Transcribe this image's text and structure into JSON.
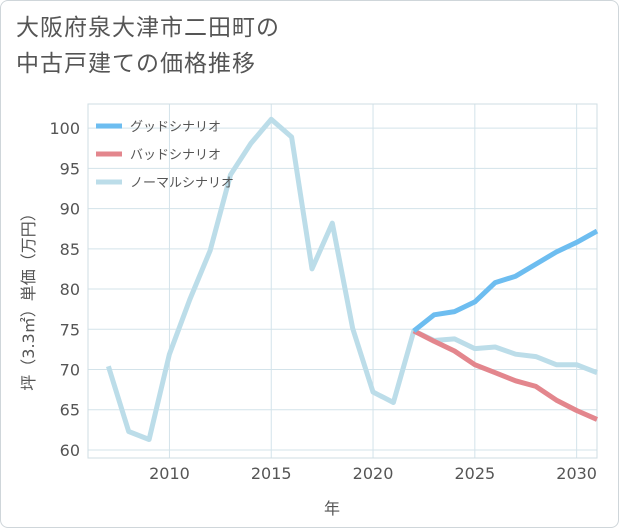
{
  "title_lines": [
    "大阪府泉大津市二田町の",
    "中古戸建ての価格推移"
  ],
  "chart_data": {
    "type": "line",
    "title": "大阪府泉大津市二田町の中古戸建ての価格推移",
    "xlabel": "年",
    "ylabel": "坪（3.3㎡）単価（万円）",
    "xlim": [
      2006,
      2031
    ],
    "ylim": [
      59,
      103
    ],
    "xticks": [
      2010,
      2015,
      2020,
      2025,
      2030
    ],
    "yticks": [
      60,
      65,
      70,
      75,
      80,
      85,
      90,
      95,
      100
    ],
    "grid": true,
    "legend_position": "top-left",
    "series": [
      {
        "name": "グッドシナリオ",
        "color": "#6dbdf0",
        "x": [
          2022,
          2023,
          2024,
          2025,
          2026,
          2027,
          2028,
          2029,
          2030,
          2031
        ],
        "values": [
          74.8,
          76.8,
          77.2,
          78.4,
          80.8,
          81.6,
          83.1,
          84.6,
          85.8,
          87.2
        ]
      },
      {
        "name": "バッドシナリオ",
        "color": "#e3868d",
        "x": [
          2022,
          2023,
          2024,
          2025,
          2026,
          2027,
          2028,
          2029,
          2030,
          2031
        ],
        "values": [
          74.8,
          73.5,
          72.3,
          70.6,
          69.6,
          68.6,
          67.9,
          66.2,
          64.9,
          63.8
        ]
      },
      {
        "name": "ノーマルシナリオ",
        "color": "#bcdde9",
        "x": [
          2007,
          2008,
          2009,
          2010,
          2011,
          2012,
          2013,
          2014,
          2015,
          2016,
          2017,
          2018,
          2019,
          2020,
          2021,
          2022,
          2023,
          2024,
          2025,
          2026,
          2027,
          2028,
          2029,
          2030,
          2031
        ],
        "values": [
          70.4,
          62.3,
          61.3,
          71.9,
          78.7,
          84.8,
          94.2,
          98.1,
          101.1,
          98.9,
          82.5,
          88.2,
          75.1,
          67.2,
          65.9,
          74.8,
          73.6,
          73.8,
          72.6,
          72.8,
          71.9,
          71.6,
          70.6,
          70.6,
          69.6
        ]
      }
    ]
  }
}
